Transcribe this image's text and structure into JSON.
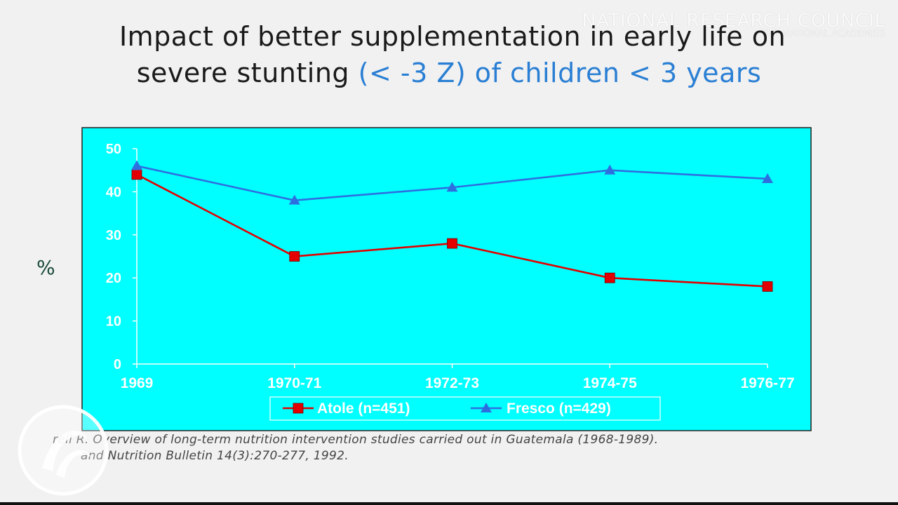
{
  "slide": {
    "title_line1": "Impact of better supplementation in early life on",
    "title_line2_prefix": "severe stunting",
    "title_line2_accent": "(< -3 Z) of children < 3 years",
    "watermark_main": "NATIONAL RESEARCH COUNCIL",
    "watermark_sub": "THE NATIONAL ACADEMIES",
    "ylabel": "%",
    "citation_line1": "rell R.  Overview of long-term nutrition intervention studies carried out in Guatemala (1968-1989).",
    "citation_line2": "and Nutrition Bulletin 14(3):270-277, 1992."
  },
  "colors": {
    "plot_background": "#00ffff",
    "atole": "#e30000",
    "fresco": "#2e6fe0",
    "axis": "#ffffff"
  },
  "chart_data": {
    "type": "line",
    "title": "",
    "xlabel": "",
    "ylabel": "%",
    "categories": [
      "1969",
      "1970-71",
      "1972-73",
      "1974-75",
      "1976-77"
    ],
    "ylim": [
      0,
      50
    ],
    "yticks": [
      0,
      10,
      20,
      30,
      40,
      50
    ],
    "grid": false,
    "legend_position": "bottom",
    "series": [
      {
        "name": "Atole (n=451)",
        "marker": "square",
        "color": "#e30000",
        "values": [
          44,
          25,
          28,
          20,
          18
        ]
      },
      {
        "name": "Fresco (n=429)",
        "marker": "triangle",
        "color": "#2e6fe0",
        "values": [
          46,
          38,
          41,
          45,
          43
        ]
      }
    ]
  }
}
